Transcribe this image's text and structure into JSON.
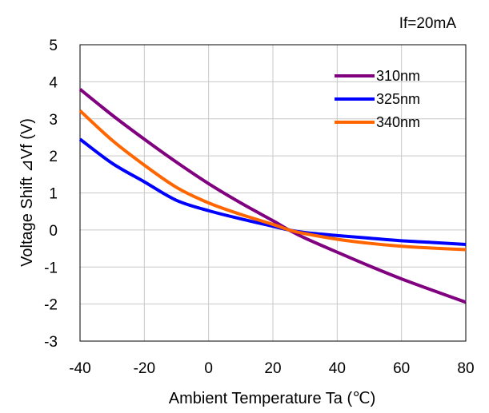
{
  "chart_data": {
    "type": "line",
    "annotation": "If=20mA",
    "xlabel": "Ambient Temperature Ta (℃)",
    "ylabel": "Voltage Shift ⊿Vf (V)",
    "xlim": [
      -40,
      80
    ],
    "ylim": [
      -3,
      5
    ],
    "xticks": [
      -40,
      -20,
      0,
      20,
      40,
      60,
      80
    ],
    "yticks": [
      -3,
      -2,
      -1,
      0,
      1,
      2,
      3,
      4,
      5
    ],
    "grid": true,
    "legend_position": "top-right",
    "x": [
      -40,
      -30,
      -20,
      -10,
      0,
      10,
      20,
      25,
      30,
      40,
      50,
      60,
      70,
      80
    ],
    "series": [
      {
        "name": "310nm",
        "color": "#800080",
        "values": [
          3.8,
          3.1,
          2.45,
          1.83,
          1.25,
          0.73,
          0.25,
          0.0,
          -0.22,
          -0.6,
          -0.97,
          -1.32,
          -1.64,
          -1.95
        ]
      },
      {
        "name": "325nm",
        "color": "#0000ff",
        "values": [
          2.45,
          1.8,
          1.3,
          0.8,
          0.52,
          0.3,
          0.1,
          0.0,
          -0.07,
          -0.15,
          -0.22,
          -0.29,
          -0.34,
          -0.39
        ]
      },
      {
        "name": "340nm",
        "color": "#ff6600",
        "values": [
          3.22,
          2.42,
          1.75,
          1.15,
          0.73,
          0.42,
          0.15,
          0.0,
          -0.1,
          -0.25,
          -0.36,
          -0.44,
          -0.49,
          -0.53
        ]
      }
    ]
  }
}
